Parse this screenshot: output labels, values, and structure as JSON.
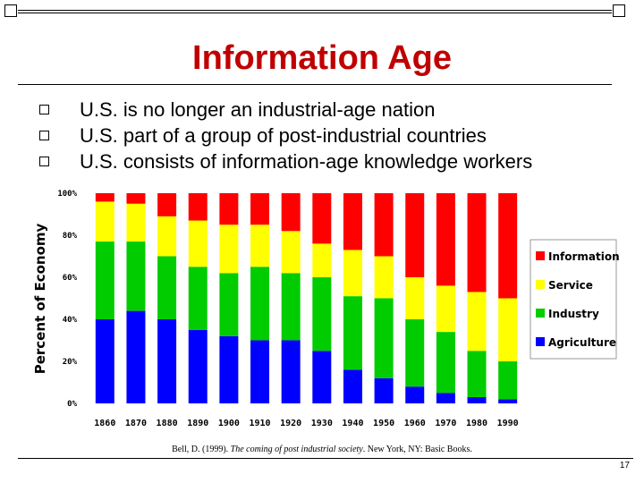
{
  "slide": {
    "title": "Information Age",
    "bullets": [
      "U.S. is no longer an industrial-age nation",
      "U.S. part of a group of post-industrial countries",
      "U.S. consists of information-age knowledge workers"
    ],
    "citation_author": "Bell, D. (1999). ",
    "citation_title": "The coming of post industrial society",
    "citation_rest": ". New York, NY: Basic Books.",
    "page_number": "17"
  },
  "chart_data": {
    "type": "bar",
    "stacked": true,
    "percent": true,
    "categories": [
      "1860",
      "1870",
      "1880",
      "1890",
      "1900",
      "1910",
      "1920",
      "1930",
      "1940",
      "1950",
      "1960",
      "1970",
      "1980",
      "1990"
    ],
    "series": [
      {
        "name": "Agriculture",
        "color": "#0000ff",
        "values": [
          40,
          44,
          40,
          35,
          32,
          30,
          30,
          25,
          16,
          12,
          8,
          5,
          3,
          2
        ]
      },
      {
        "name": "Industry",
        "color": "#00cc00",
        "values": [
          37,
          33,
          30,
          30,
          30,
          35,
          32,
          35,
          35,
          38,
          32,
          29,
          22,
          18
        ]
      },
      {
        "name": "Service",
        "color": "#ffff00",
        "values": [
          19,
          18,
          19,
          22,
          23,
          20,
          20,
          16,
          22,
          20,
          20,
          22,
          28,
          30
        ]
      },
      {
        "name": "Information",
        "color": "#ff0000",
        "values": [
          4,
          5,
          11,
          13,
          15,
          15,
          18,
          24,
          27,
          30,
          40,
          44,
          47,
          50
        ]
      }
    ],
    "ylabel": "Percent of Economy",
    "ytick_labels": [
      "0%",
      "20%",
      "40%",
      "60%",
      "80%",
      "100%"
    ],
    "ylim": [
      0,
      100
    ],
    "grid": false,
    "legend_position": "right",
    "legend_order": [
      "Information",
      "Service",
      "Industry",
      "Agriculture"
    ]
  }
}
